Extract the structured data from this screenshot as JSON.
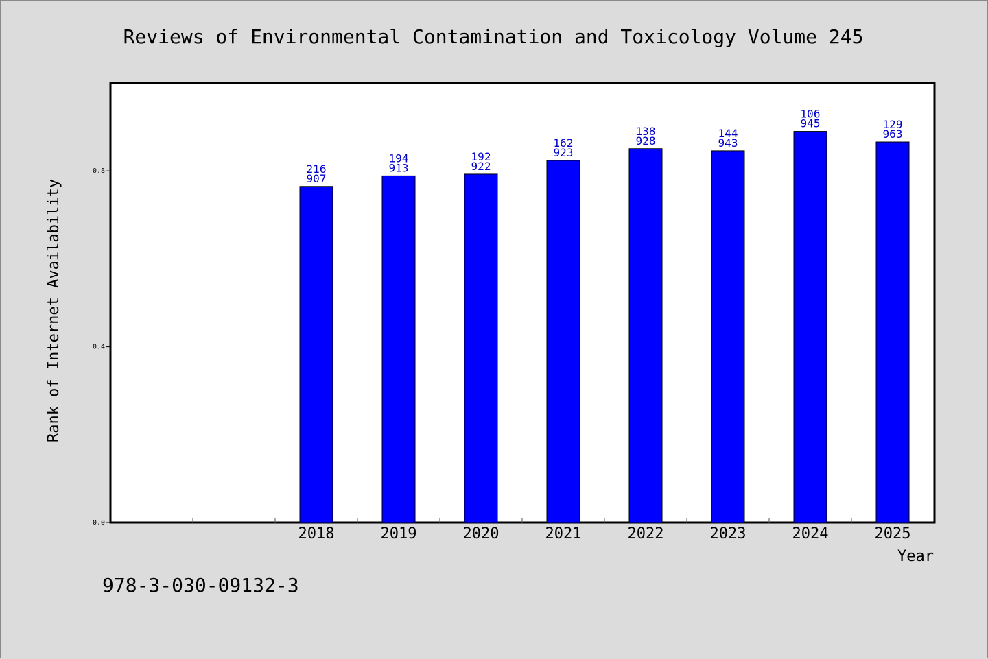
{
  "chart_data": {
    "type": "bar",
    "title": "Reviews of Environmental Contamination and Toxicology Volume 245",
    "xlabel": "Year",
    "ylabel": "Rank of Internet Availability",
    "footer": "978-3-030-09132-3",
    "categories": [
      "2018",
      "2019",
      "2020",
      "2021",
      "2022",
      "2023",
      "2024",
      "2025"
    ],
    "values": [
      0.7648,
      0.7888,
      0.7926,
      0.8237,
      0.8506,
      0.8457,
      0.8899,
      0.8658
    ],
    "labels_top": [
      "216",
      "194",
      "192",
      "162",
      "138",
      "144",
      "106",
      "129"
    ],
    "labels_bottom": [
      "907",
      "913",
      "922",
      "923",
      "928",
      "943",
      "945",
      "963"
    ],
    "yticks": [
      "0.0",
      "0.4",
      "0.8"
    ],
    "ytick_values": [
      0.0,
      0.4,
      0.8
    ],
    "ylim": [
      0,
      1.0
    ],
    "grid": false,
    "colors": {
      "bar": "#0000ff",
      "label": "#0000cc",
      "background": "#dcdcdc",
      "plot": "#ffffff"
    }
  }
}
